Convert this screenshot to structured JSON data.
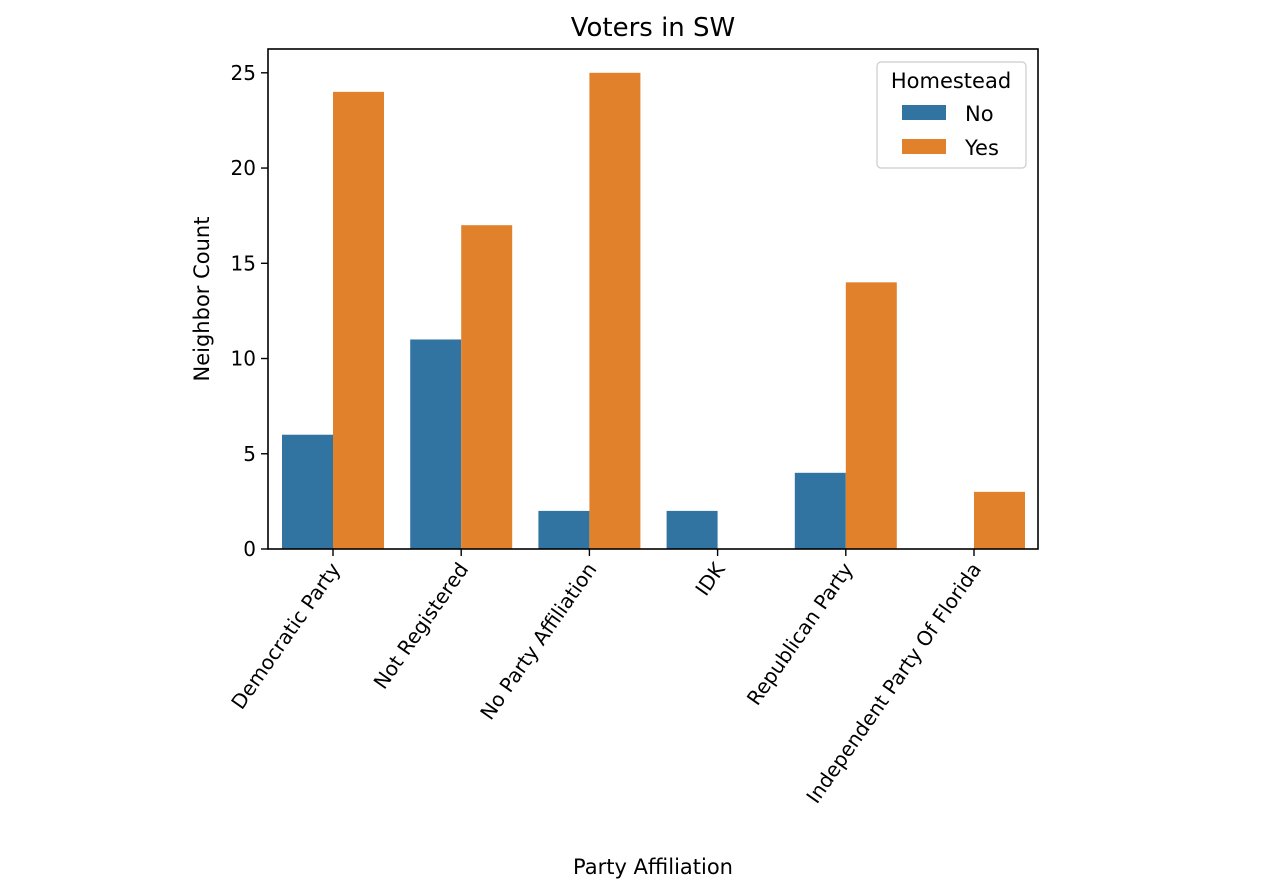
{
  "chart_data": {
    "type": "bar",
    "title": "Voters in SW",
    "xlabel": "Party Affiliation",
    "ylabel": "Neighbor Count",
    "categories": [
      "Democratic Party",
      "Not Registered",
      "No Party Affiliation",
      "IDK",
      "Republican Party",
      "Independent Party Of Florida"
    ],
    "series": [
      {
        "name": "No",
        "color": "#3274a1",
        "values": [
          6,
          11,
          2,
          2,
          4,
          0
        ]
      },
      {
        "name": "Yes",
        "color": "#e1812c",
        "values": [
          24,
          17,
          25,
          0,
          14,
          3
        ]
      }
    ],
    "ylim": [
      0,
      26.25
    ],
    "yticks": [
      0,
      5,
      10,
      15,
      20,
      25
    ],
    "grid": false,
    "legend": {
      "title": "Homestead",
      "placement": "top-right"
    }
  }
}
